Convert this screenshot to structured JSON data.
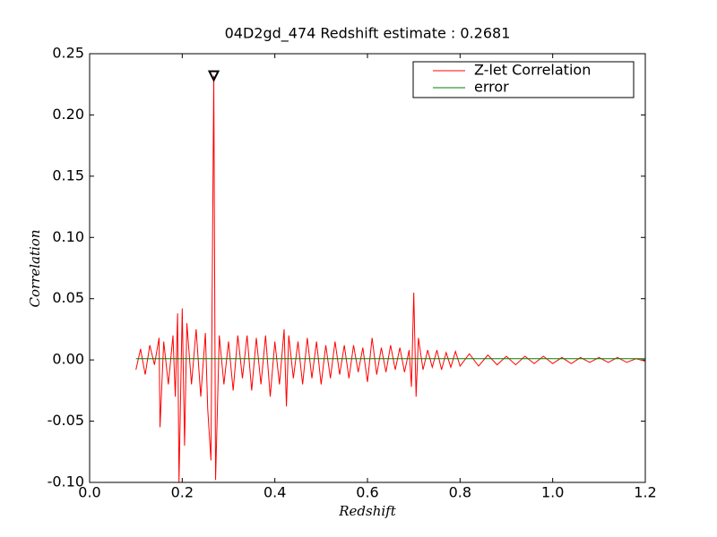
{
  "chart_data": {
    "type": "line",
    "title": "04D2gd_474 Redshift estimate : 0.2681",
    "xlabel": "Redshift",
    "ylabel": "Correlation",
    "xlim": [
      0,
      1.2
    ],
    "ylim": [
      -0.1,
      0.25
    ],
    "xticks": [
      {
        "value": 0,
        "label": "0.0"
      },
      0.2,
      0.4,
      0.6,
      0.8,
      {
        "value": 1,
        "label": "1.0"
      },
      1.2
    ],
    "yticks": [
      {
        "value": -0.1,
        "label": "-0.10"
      },
      -0.05,
      {
        "value": 0,
        "label": "0.00"
      },
      0.05,
      {
        "value": 0.1,
        "label": "0.10"
      },
      0.15,
      {
        "value": 0.2,
        "label": "0.20"
      },
      0.25
    ],
    "legend": "upper right",
    "series": [
      {
        "name": "Z-let Correlation",
        "color": "#ff0000",
        "x": [
          0.1,
          0.11,
          0.12,
          0.13,
          0.14,
          0.15,
          0.152,
          0.16,
          0.17,
          0.18,
          0.185,
          0.19,
          0.193,
          0.2,
          0.205,
          0.21,
          0.22,
          0.23,
          0.24,
          0.25,
          0.255,
          0.262,
          0.2681,
          0.272,
          0.28,
          0.29,
          0.3,
          0.31,
          0.32,
          0.33,
          0.34,
          0.35,
          0.36,
          0.37,
          0.38,
          0.39,
          0.4,
          0.41,
          0.42,
          0.425,
          0.43,
          0.44,
          0.45,
          0.46,
          0.47,
          0.48,
          0.49,
          0.5,
          0.51,
          0.52,
          0.53,
          0.54,
          0.55,
          0.56,
          0.57,
          0.58,
          0.59,
          0.6,
          0.61,
          0.62,
          0.63,
          0.64,
          0.65,
          0.66,
          0.67,
          0.68,
          0.69,
          0.695,
          0.7,
          0.705,
          0.71,
          0.72,
          0.73,
          0.74,
          0.75,
          0.76,
          0.77,
          0.78,
          0.79,
          0.8,
          0.82,
          0.84,
          0.86,
          0.88,
          0.9,
          0.92,
          0.94,
          0.96,
          0.98,
          1.0,
          1.02,
          1.04,
          1.06,
          1.08,
          1.1,
          1.12,
          1.14,
          1.16,
          1.18,
          1.2
        ],
        "values": [
          -0.008,
          0.009,
          -0.012,
          0.012,
          -0.004,
          0.018,
          -0.055,
          0.015,
          -0.02,
          0.02,
          -0.03,
          0.038,
          -0.1,
          0.042,
          -0.07,
          0.03,
          -0.02,
          0.025,
          -0.03,
          0.022,
          -0.04,
          -0.082,
          0.232,
          -0.098,
          0.02,
          -0.02,
          0.015,
          -0.025,
          0.02,
          -0.015,
          0.02,
          -0.025,
          0.018,
          -0.02,
          0.02,
          -0.03,
          0.015,
          -0.02,
          0.025,
          -0.038,
          0.02,
          -0.015,
          0.015,
          -0.02,
          0.018,
          -0.015,
          0.015,
          -0.02,
          0.012,
          -0.015,
          0.015,
          -0.012,
          0.012,
          -0.015,
          0.012,
          -0.01,
          0.01,
          -0.018,
          0.018,
          -0.012,
          0.01,
          -0.01,
          0.012,
          -0.008,
          0.01,
          -0.01,
          0.008,
          -0.022,
          0.055,
          -0.03,
          0.018,
          -0.008,
          0.008,
          -0.006,
          0.008,
          -0.008,
          0.006,
          -0.006,
          0.007,
          -0.005,
          0.005,
          -0.005,
          0.004,
          -0.004,
          0.003,
          -0.004,
          0.003,
          -0.003,
          0.003,
          -0.003,
          0.002,
          -0.003,
          0.002,
          -0.002,
          0.002,
          -0.002,
          0.002,
          -0.002,
          0.001,
          -0.001
        ]
      },
      {
        "name": "error",
        "color": "#008000",
        "x": [
          0.1,
          1.2
        ],
        "values": [
          0.001,
          0.001
        ]
      }
    ],
    "marker": {
      "x": 0.2681,
      "y": 0.232
    }
  }
}
